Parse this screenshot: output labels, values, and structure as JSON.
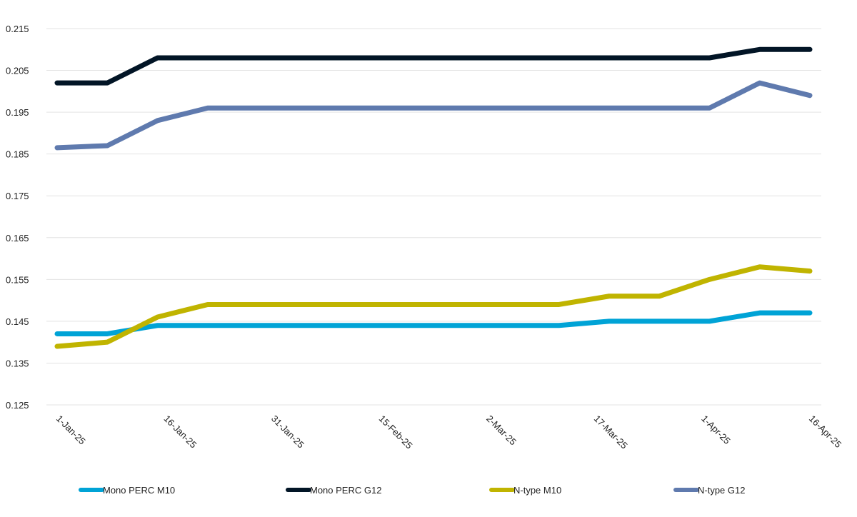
{
  "chart_data": {
    "type": "line",
    "title": "",
    "xlabel": "",
    "ylabel": "",
    "ylim": [
      0.125,
      0.215
    ],
    "yticks": [
      "0.125",
      "0.135",
      "0.145",
      "0.155",
      "0.165",
      "0.175",
      "0.185",
      "0.195",
      "0.205",
      "0.215"
    ],
    "xtick_labels": [
      "1-Jan-25",
      "16-Jan-25",
      "31-Jan-25",
      "15-Feb-25",
      "2-Mar-25",
      "17-Mar-25",
      "1-Apr-25",
      "16-Apr-25"
    ],
    "xtick_days": [
      0,
      15,
      30,
      45,
      60,
      75,
      90,
      105
    ],
    "x_days": [
      0,
      7,
      14,
      21,
      28,
      35,
      42,
      49,
      56,
      63,
      70,
      77,
      84,
      91,
      98,
      105
    ],
    "grid": true,
    "legend_position": "bottom",
    "series": [
      {
        "name": "Mono PERC M10",
        "color": "#00A3D6",
        "values": [
          0.142,
          0.142,
          0.144,
          0.144,
          0.144,
          0.144,
          0.144,
          0.144,
          0.144,
          0.144,
          0.144,
          0.145,
          0.145,
          0.145,
          0.147,
          0.147
        ]
      },
      {
        "name": "Mono PERC G12",
        "color": "#021526",
        "values": [
          0.202,
          0.202,
          0.208,
          0.208,
          0.208,
          0.208,
          0.208,
          0.208,
          0.208,
          0.208,
          0.208,
          0.208,
          0.208,
          0.208,
          0.21,
          0.21
        ]
      },
      {
        "name": "N-type M10",
        "color": "#C0B400",
        "values": [
          0.139,
          0.14,
          0.146,
          0.149,
          0.149,
          0.149,
          0.149,
          0.149,
          0.149,
          0.149,
          0.149,
          0.151,
          0.151,
          0.155,
          0.158,
          0.157
        ]
      },
      {
        "name": "N-type G12",
        "color": "#5F7AAE",
        "values": [
          0.1865,
          0.187,
          0.193,
          0.196,
          0.196,
          0.196,
          0.196,
          0.196,
          0.196,
          0.196,
          0.196,
          0.196,
          0.196,
          0.196,
          0.202,
          0.199
        ]
      }
    ]
  }
}
